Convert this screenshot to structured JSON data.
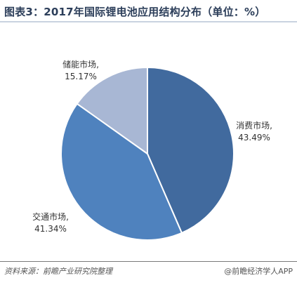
{
  "header": {
    "title": "图表3：2017年国际锂电池应用结构分布（单位：%）"
  },
  "chart_data": {
    "type": "pie",
    "title": "图表3：2017年国际锂电池应用结构分布（单位：%）",
    "slices": [
      {
        "name": "消费市场",
        "value": 43.49,
        "value_label": "43.49%",
        "color": "#416a9e"
      },
      {
        "name": "交通市场",
        "value": 41.34,
        "value_label": "41.34%",
        "color": "#4f82be"
      },
      {
        "name": "储能市场",
        "value": 15.17,
        "value_label": "15.17%",
        "color": "#a8b7d4"
      }
    ]
  },
  "footer": {
    "source": "资料来源：前瞻产业研究院整理",
    "brand": "@前瞻经济学人APP"
  }
}
